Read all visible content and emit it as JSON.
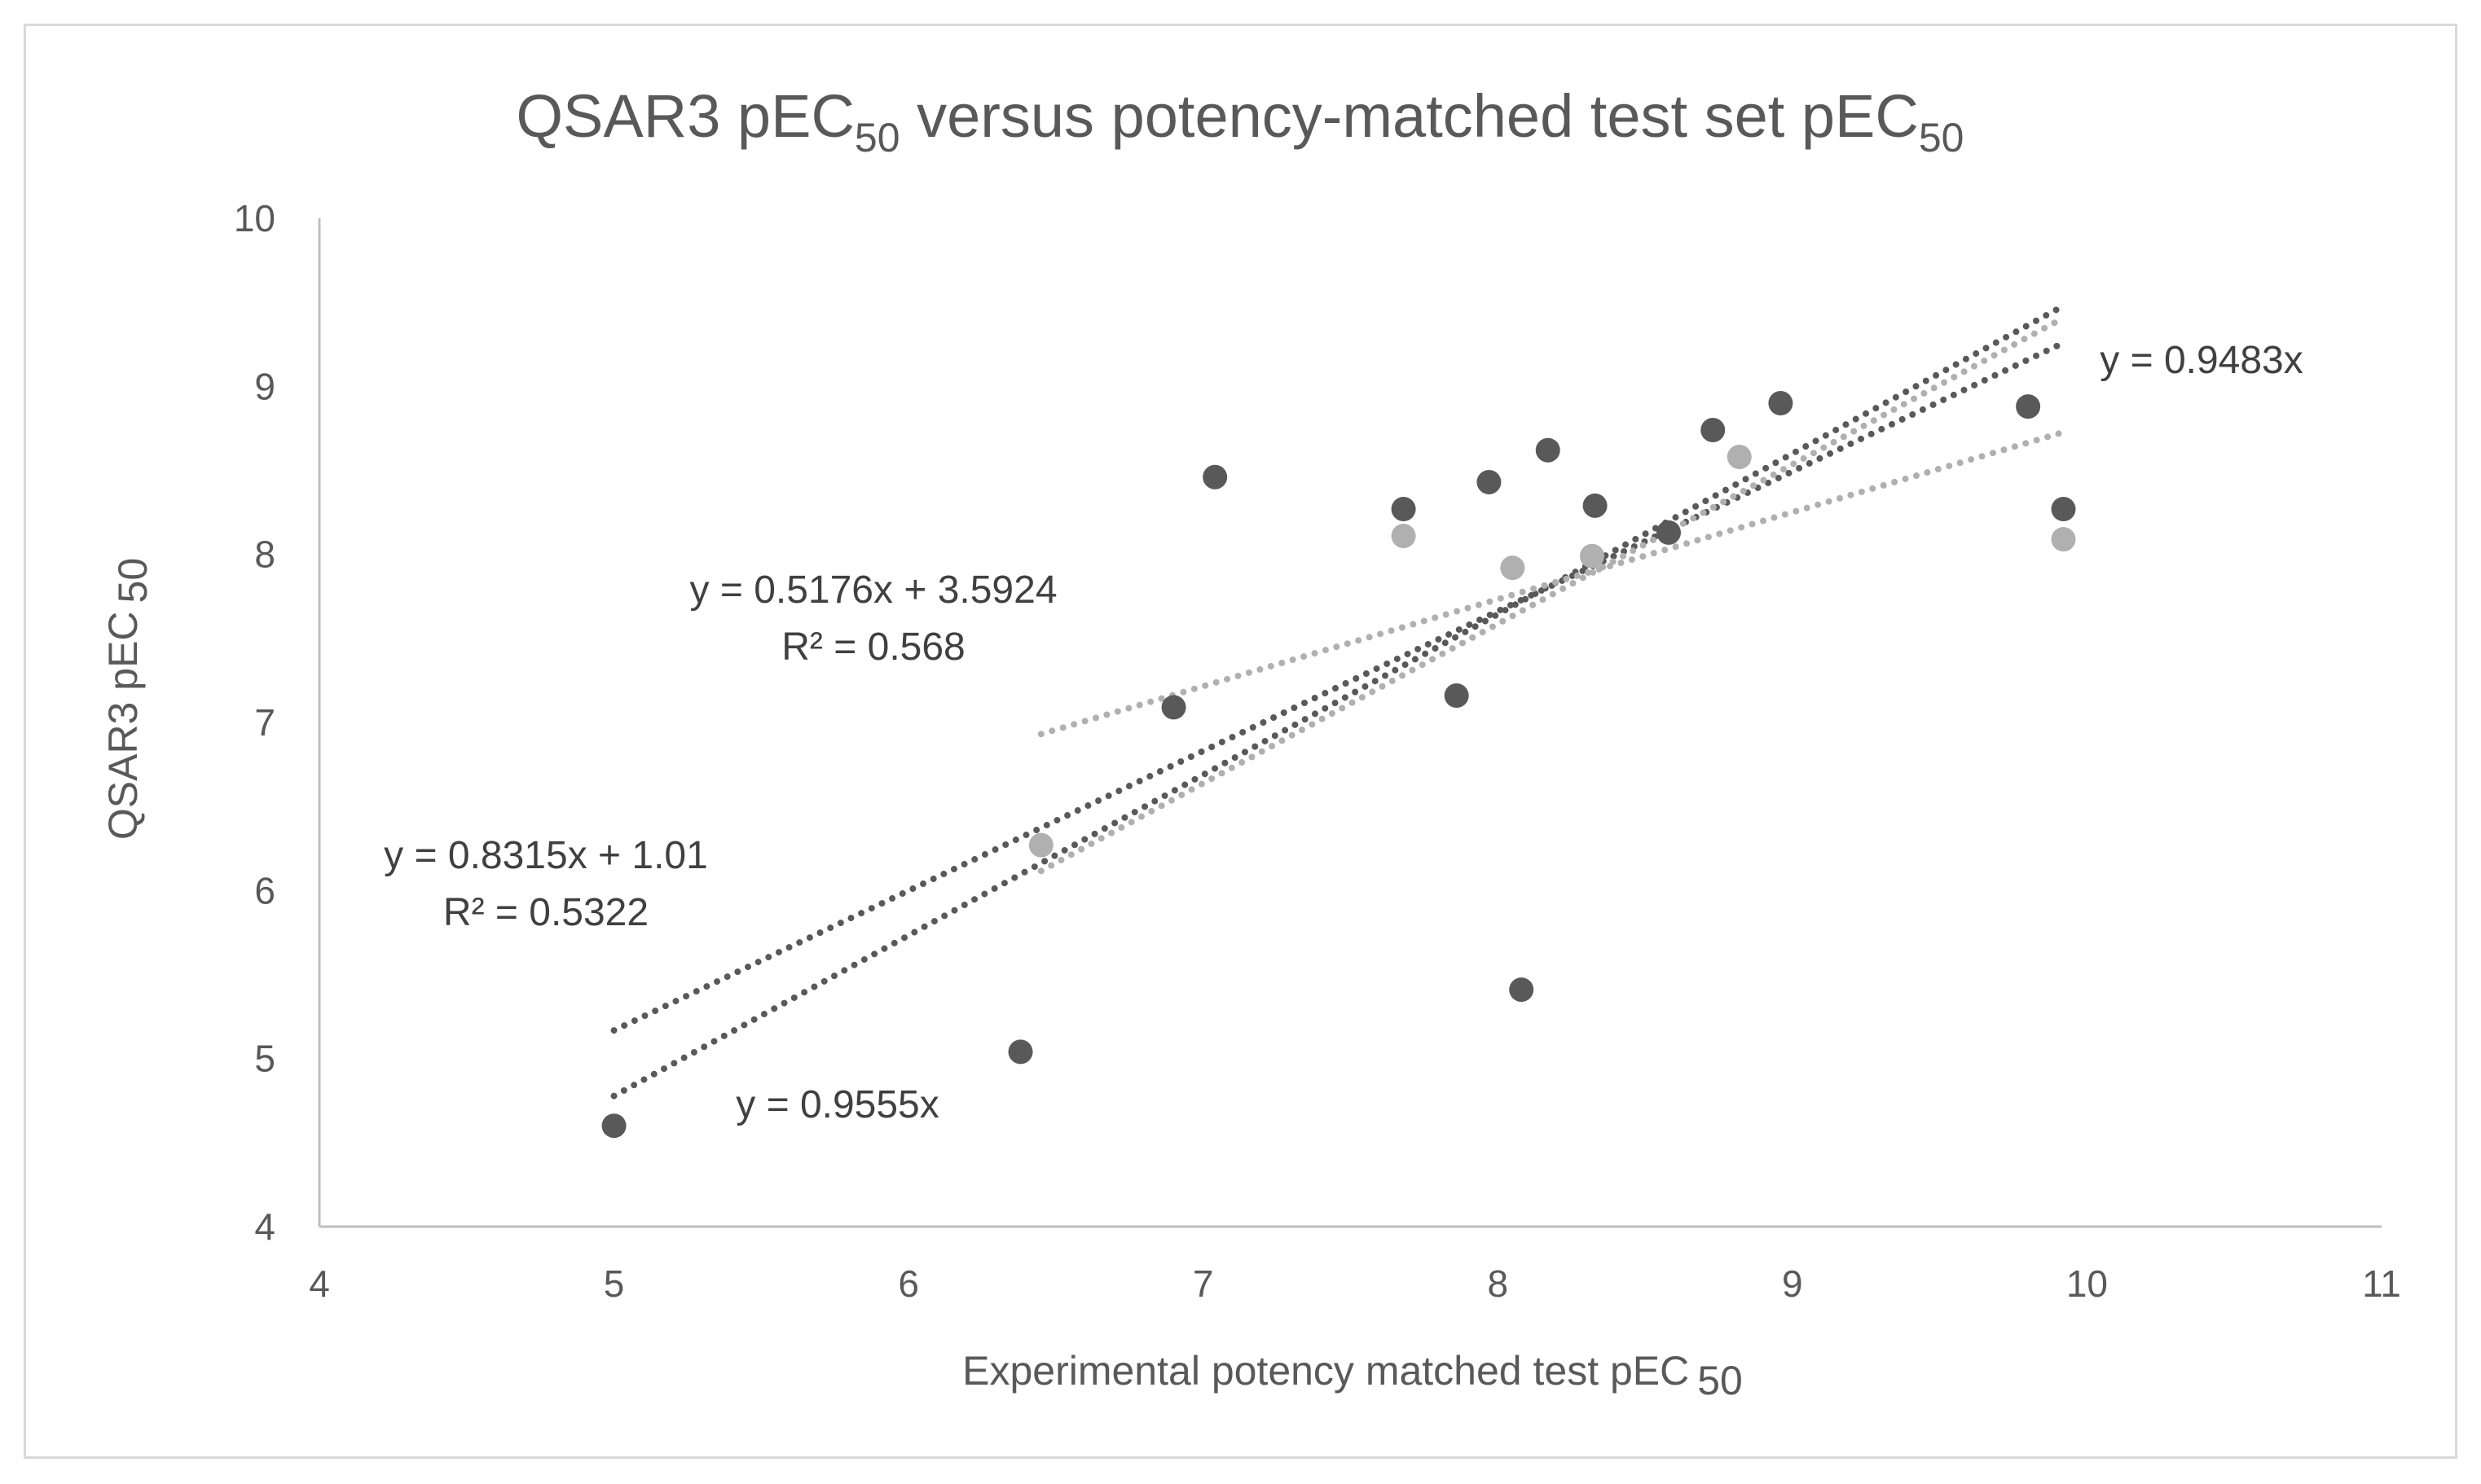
{
  "chart_data": {
    "type": "scatter",
    "title": {
      "main": "QSAR3 pEC",
      "main_sub": "50",
      "mid": " versus potency-matched test set pEC",
      "mid_sub": "50"
    },
    "xlabel": {
      "main": "Experimental potency matched test pEC",
      "sub": "50"
    },
    "ylabel": {
      "main": "QSAR3 pEC",
      "sub": "50"
    },
    "xlim": [
      4,
      11
    ],
    "ylim": [
      4,
      10
    ],
    "x_ticks": [
      "4",
      "5",
      "6",
      "7",
      "8",
      "9",
      "10",
      "11"
    ],
    "y_ticks": [
      "4",
      "5",
      "6",
      "7",
      "8",
      "9",
      "10"
    ],
    "grid": false,
    "legend": "none",
    "colors": {
      "dark_series": "#595959",
      "light_series": "#b0b0b0",
      "axis": "#bfbfbf",
      "text": "#595959"
    },
    "series": [
      {
        "name": "dark",
        "color": "#595959",
        "points": [
          [
            5.0,
            4.6
          ],
          [
            6.38,
            5.04
          ],
          [
            6.9,
            7.09
          ],
          [
            7.04,
            8.46
          ],
          [
            7.68,
            8.27
          ],
          [
            7.86,
            7.16
          ],
          [
            7.97,
            8.43
          ],
          [
            8.08,
            5.41
          ],
          [
            8.17,
            8.62
          ],
          [
            8.33,
            8.29
          ],
          [
            8.58,
            8.13
          ],
          [
            8.73,
            8.74
          ],
          [
            8.96,
            8.9
          ],
          [
            9.8,
            8.88
          ],
          [
            9.92,
            8.27
          ]
        ]
      },
      {
        "name": "light",
        "color": "#b0b0b0",
        "points": [
          [
            6.45,
            6.27
          ],
          [
            7.68,
            8.11
          ],
          [
            8.05,
            7.92
          ],
          [
            8.32,
            7.99
          ],
          [
            8.82,
            8.58
          ],
          [
            9.92,
            8.09
          ]
        ]
      }
    ],
    "trendlines": [
      {
        "name": "dark-linear",
        "color": "#595959",
        "slope": 0.8315,
        "intercept": 1.01,
        "x_range": [
          5.0,
          9.92
        ]
      },
      {
        "name": "dark-through-origin",
        "color": "#595959",
        "slope": 0.9555,
        "intercept": 0,
        "x_range": [
          5.0,
          9.92
        ]
      },
      {
        "name": "light-linear",
        "color": "#b0b0b0",
        "slope": 0.5176,
        "intercept": 3.5924,
        "x_range": [
          6.45,
          9.92
        ]
      },
      {
        "name": "light-through-origin",
        "color": "#b0b0b0",
        "slope": 0.9483,
        "intercept": 0,
        "x_range": [
          6.45,
          9.92
        ]
      }
    ],
    "annotations": [
      {
        "name": "eq-light-linear",
        "lines": [
          "y = 0.5176x + 3.5924",
          "R² = 0.568"
        ]
      },
      {
        "name": "eq-dark-linear",
        "lines": [
          "y = 0.8315x + 1.01",
          "R² = 0.5322"
        ]
      },
      {
        "name": "eq-dark-origin",
        "lines": [
          "y = 0.9555x"
        ]
      },
      {
        "name": "eq-light-origin",
        "lines": [
          "y = 0.9483x"
        ]
      }
    ]
  }
}
